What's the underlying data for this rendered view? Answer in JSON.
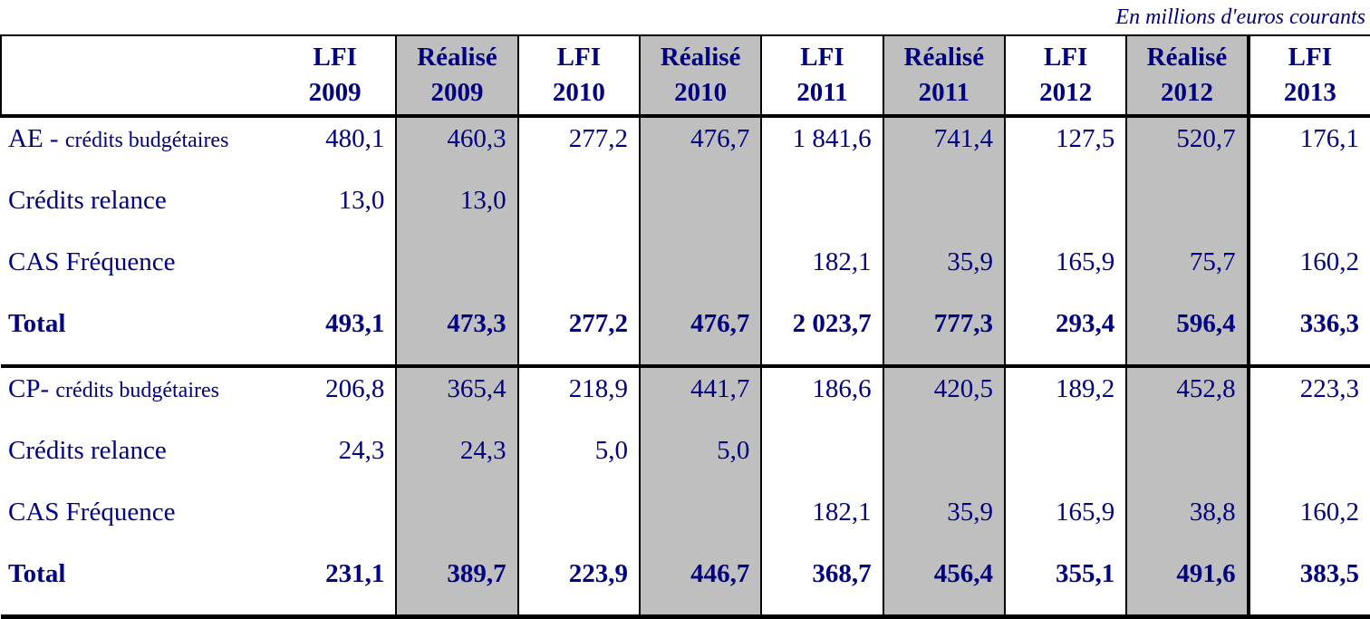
{
  "caption": "En millions d'euros courants",
  "colors": {
    "text_navy": "#000080",
    "shaded_column": "#bfbfbf",
    "border": "#000000"
  },
  "columns": [
    {
      "label": "LFI",
      "year": "2009"
    },
    {
      "label": "Réalisé",
      "year": "2009"
    },
    {
      "label": "LFI",
      "year": "2010"
    },
    {
      "label": "Réalisé",
      "year": "2010"
    },
    {
      "label": "LFI",
      "year": "2011"
    },
    {
      "label": "Réalisé",
      "year": "2011"
    },
    {
      "label": "LFI",
      "year": "2012"
    },
    {
      "label": "Réalisé",
      "year": "2012"
    },
    {
      "label": "LFI",
      "year": "2013"
    }
  ],
  "sections": [
    {
      "rows": [
        {
          "label_main": "AE - ",
          "label_small": "crédits budgétaires",
          "values": [
            "480,1",
            "460,3",
            "277,2",
            "476,7",
            "1 841,6",
            "741,4",
            "127,5",
            "520,7",
            "176,1"
          ]
        },
        {
          "label": "Crédits relance",
          "values": [
            "13,0",
            "13,0",
            "",
            "",
            "",
            "",
            "",
            "",
            ""
          ]
        },
        {
          "label": "CAS Fréquence",
          "values": [
            "",
            "",
            "",
            "",
            "182,1",
            "35,9",
            "165,9",
            "75,7",
            "160,2"
          ]
        },
        {
          "label": "Total",
          "values": [
            "493,1",
            "473,3",
            "277,2",
            "476,7",
            "2 023,7",
            "777,3",
            "293,4",
            "596,4",
            "336,3"
          ]
        }
      ]
    },
    {
      "rows": [
        {
          "label_main": "CP- ",
          "label_small": "crédits budgétaires",
          "values": [
            "206,8",
            "365,4",
            "218,9",
            "441,7",
            "186,6",
            "420,5",
            "189,2",
            "452,8",
            "223,3"
          ]
        },
        {
          "label": "Crédits relance",
          "values": [
            "24,3",
            "24,3",
            "5,0",
            "5,0",
            "",
            "",
            "",
            "",
            ""
          ]
        },
        {
          "label": "CAS Fréquence",
          "values": [
            "",
            "",
            "",
            "",
            "182,1",
            "35,9",
            "165,9",
            "38,8",
            "160,2"
          ]
        },
        {
          "label": "Total",
          "values": [
            "231,1",
            "389,7",
            "223,9",
            "446,7",
            "368,7",
            "456,4",
            "355,1",
            "491,6",
            "383,5"
          ]
        }
      ]
    }
  ]
}
